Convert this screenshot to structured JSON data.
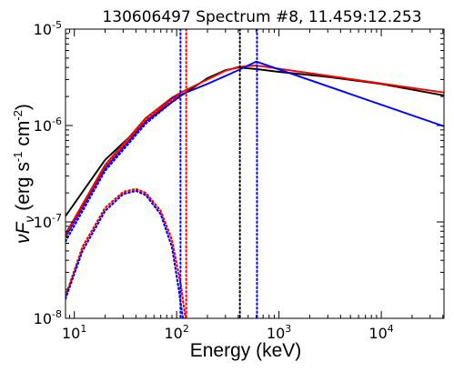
{
  "chart_data": {
    "type": "line",
    "title": "130606497 Spectrum #8, 11.459:12.253",
    "xlabel": "Energy (keV)",
    "ylabel": {
      "prefix": "νF",
      "subscript": "ν",
      "open": " (erg s",
      "exp1": "-1",
      "mid": " cm",
      "exp2": "-2",
      "close": ")"
    },
    "xscale": "log",
    "yscale": "log",
    "xlim": [
      8.2,
      41000
    ],
    "ylim": [
      1e-08,
      1e-05
    ],
    "xticks": [
      {
        "value": 10,
        "base": "10",
        "exp": "1"
      },
      {
        "value": 100,
        "base": "10",
        "exp": "2"
      },
      {
        "value": 1000,
        "base": "10",
        "exp": "3"
      },
      {
        "value": 10000,
        "base": "10",
        "exp": "4"
      }
    ],
    "yticks": [
      {
        "value": 1e-08,
        "base": "10",
        "exp": "-8"
      },
      {
        "value": 1e-07,
        "base": "10",
        "exp": "-7"
      },
      {
        "value": 1e-06,
        "base": "10",
        "exp": "-6"
      },
      {
        "value": 1e-05,
        "base": "10",
        "exp": "-5"
      }
    ],
    "grid": false,
    "legend": "none",
    "series": [
      {
        "color": "#000000",
        "style": "solid",
        "x": [
          8.2,
          20,
          50,
          100,
          200,
          300,
          400,
          600,
          1000,
          3000,
          10000,
          41000
        ],
        "y": [
          1.15e-07,
          4.4e-07,
          1.1e-06,
          1.9e-06,
          3.1e-06,
          3.75e-06,
          4e-06,
          3.85e-06,
          3.6e-06,
          3.2e-06,
          2.7e-06,
          2.05e-06
        ]
      },
      {
        "color": "#ff0000",
        "style": "solid",
        "x": [
          8.2,
          20,
          50,
          90,
          110,
          200,
          300,
          400,
          600,
          41000
        ],
        "y": [
          7.5e-08,
          3.9e-07,
          1.2e-06,
          1.95e-06,
          2.2e-06,
          3e-06,
          3.7e-06,
          4.05e-06,
          4.2e-06,
          2.2e-06
        ]
      },
      {
        "color": "#0000ff",
        "style": "solid",
        "x": [
          8.2,
          20,
          50,
          90,
          105,
          200,
          400,
          600,
          41000
        ],
        "y": [
          7e-08,
          3.6e-07,
          1.1e-06,
          1.9e-06,
          2.05e-06,
          2.7e-06,
          3.75e-06,
          4.6e-06,
          9.8e-07
        ]
      },
      {
        "color": "#ff0000",
        "style": "dotted",
        "x": [
          8.2,
          20,
          50,
          90,
          110
        ],
        "y": [
          7.3e-08,
          3.8e-07,
          1.15e-06,
          1.85e-06,
          2.1e-06
        ]
      },
      {
        "color": "#0000ff",
        "style": "dotted",
        "x": [
          8.2,
          20,
          50,
          90,
          105
        ],
        "y": [
          6.3e-08,
          3.4e-07,
          1.05e-06,
          1.75e-06,
          1.95e-06
        ]
      },
      {
        "color": "#ff0000",
        "style": "dotted",
        "x": [
          8.2,
          12,
          20,
          30,
          40,
          50,
          70,
          90,
          110,
          122
        ],
        "y": [
          1.7e-08,
          5.5e-08,
          1.4e-07,
          2.05e-07,
          2.2e-07,
          2e-07,
          1.3e-07,
          6.5e-08,
          2.2e-08,
          1e-08
        ]
      },
      {
        "color": "#0000ff",
        "style": "dotted",
        "x": [
          8.2,
          12,
          20,
          30,
          40,
          50,
          70,
          90,
          105,
          115
        ],
        "y": [
          1.6e-08,
          5e-08,
          1.3e-07,
          1.95e-07,
          2.1e-07,
          1.9e-07,
          1.2e-07,
          5.5e-08,
          2e-08,
          1e-08
        ]
      }
    ],
    "vlines": [
      {
        "x": 109,
        "color": "#0000ff",
        "style": "dotted"
      },
      {
        "x": 124,
        "color": "#ff0000",
        "style": "dotted"
      },
      {
        "x": 415,
        "color": "#000000",
        "style": "dotted"
      },
      {
        "x": 610,
        "color": "#0000ff",
        "style": "dotted"
      }
    ]
  }
}
